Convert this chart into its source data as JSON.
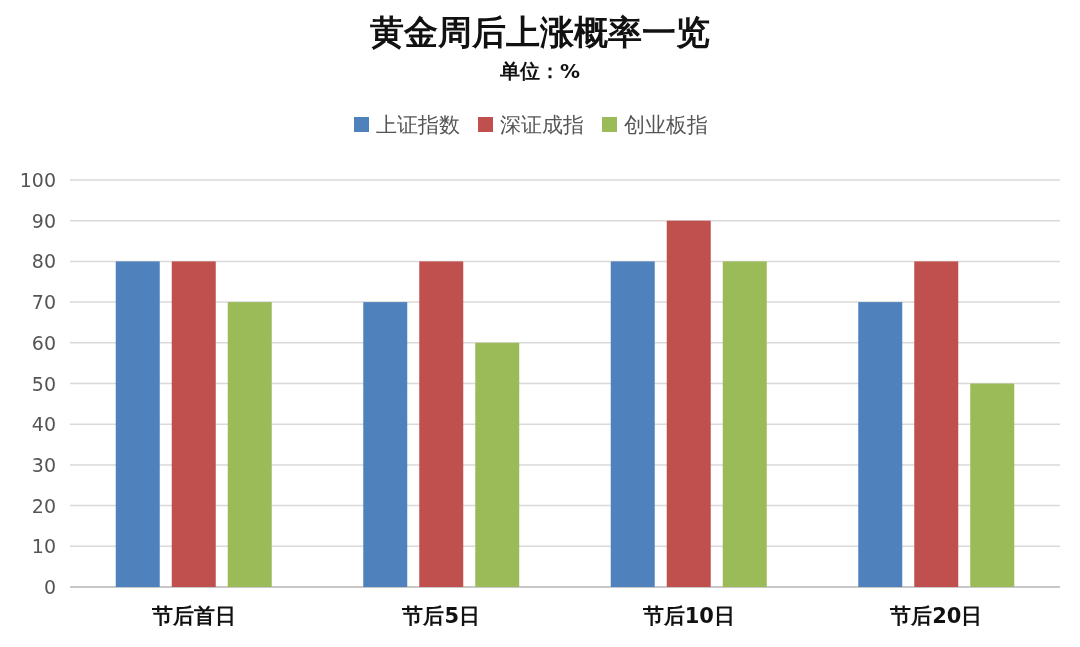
{
  "chart_data": {
    "type": "bar",
    "title": "黄金周后上涨概率一览",
    "subtitle": "单位：%",
    "categories": [
      "节后首日",
      "节后5日",
      "节后10日",
      "节后20日"
    ],
    "series": [
      {
        "name": "上证指数",
        "color": "#4f81bd",
        "values": [
          80,
          70,
          80,
          70
        ]
      },
      {
        "name": "深证成指",
        "color": "#c0504d",
        "values": [
          80,
          80,
          90,
          80
        ]
      },
      {
        "name": "创业板指",
        "color": "#9bbb59",
        "values": [
          70,
          60,
          80,
          50
        ]
      }
    ],
    "ylim": [
      0,
      100
    ],
    "yticks": [
      0,
      10,
      20,
      30,
      40,
      50,
      60,
      70,
      80,
      90,
      100
    ],
    "grid": "y",
    "legend": "top"
  }
}
